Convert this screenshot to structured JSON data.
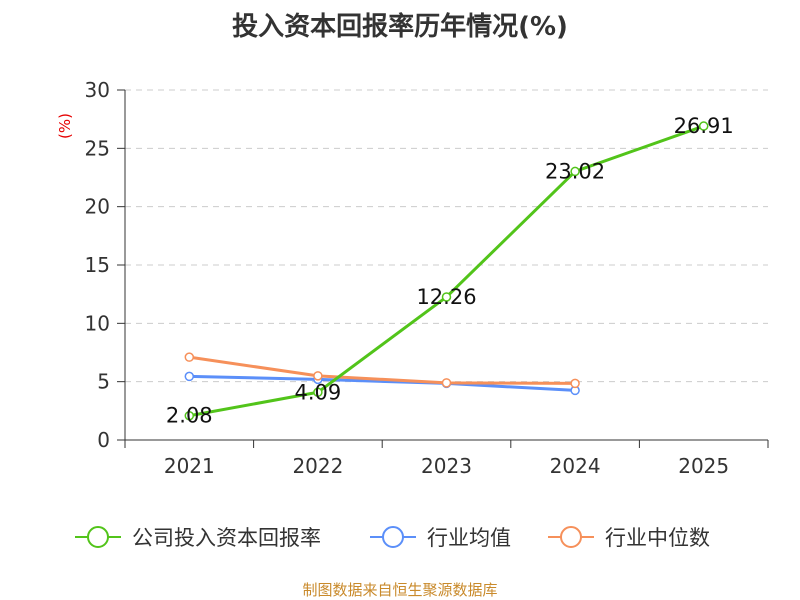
{
  "chart_data": {
    "type": "line",
    "title": "投入资本回报率历年情况(%)",
    "ylabel": "(%)",
    "xlabel": "",
    "categories": [
      "2021",
      "2022",
      "2023",
      "2024",
      "2025"
    ],
    "ylim": [
      0,
      30
    ],
    "yticks": [
      0,
      5,
      10,
      15,
      20,
      25,
      30
    ],
    "grid": true,
    "legend_position": "bottom",
    "series": [
      {
        "name": "公司投入资本回报率",
        "color": "#52c41a",
        "values": [
          2.08,
          4.09,
          12.26,
          23.02,
          26.91
        ],
        "labels": [
          "2.08",
          "4.09",
          "12.26",
          "23.02",
          "26.91"
        ]
      },
      {
        "name": "行业均值",
        "color": "#5b8ff9",
        "values": [
          5.45,
          5.2,
          4.85,
          4.25,
          null
        ]
      },
      {
        "name": "行业中位数",
        "color": "#f6905a",
        "values": [
          7.1,
          5.5,
          4.9,
          4.85,
          null
        ]
      }
    ]
  },
  "source": "制图数据来自恒生聚源数据库"
}
